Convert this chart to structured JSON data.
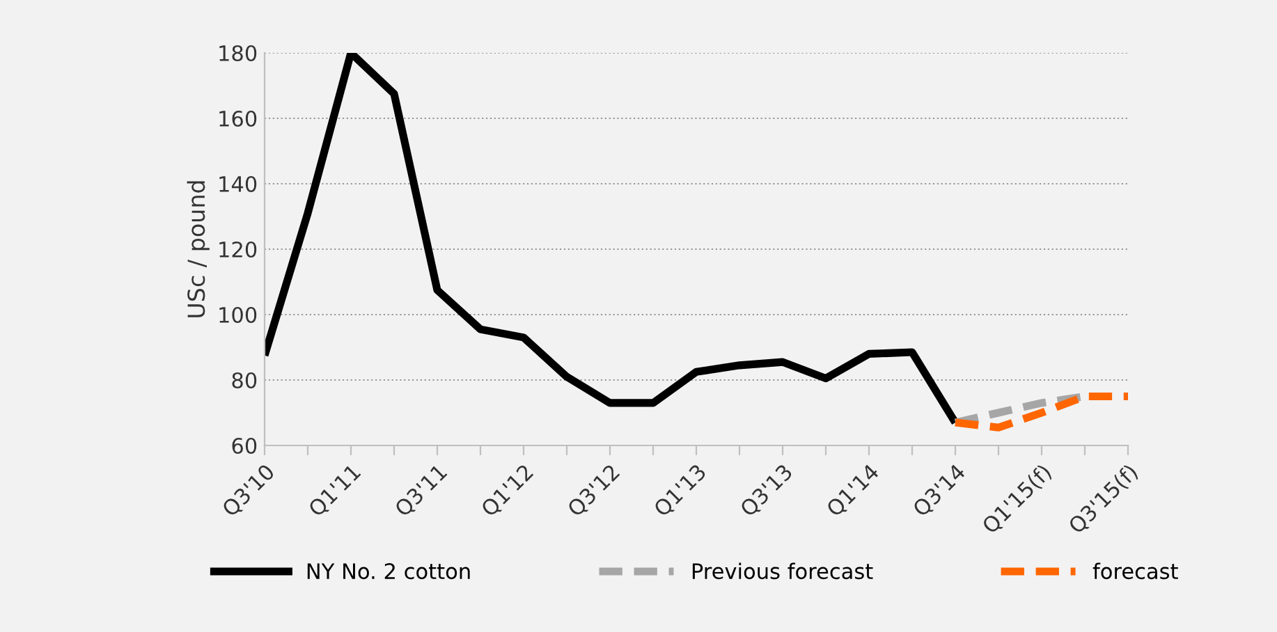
{
  "chart_data": {
    "type": "line",
    "ylabel": "USc / pound",
    "categories": [
      "Q3'10",
      null,
      "Q1'11",
      null,
      "Q3'11",
      null,
      "Q1'12",
      null,
      "Q3'12",
      null,
      "Q1'13",
      null,
      "Q3'13",
      null,
      "Q1'14",
      null,
      "Q3'14",
      null,
      "Q1'15(f)",
      null,
      "Q3'15(f)"
    ],
    "series": [
      {
        "name": "NY No. 2 cotton",
        "color": "#000000",
        "line_style": "solid",
        "values": [
          87.5,
          131,
          180,
          167.5,
          107.5,
          95.5,
          93,
          81,
          73,
          73,
          82.5,
          84.5,
          85.5,
          80.5,
          88,
          88.5,
          67,
          null,
          null,
          null,
          null
        ]
      },
      {
        "name": "Previous forecast",
        "color": "#a6a6a6",
        "line_style": "dashed",
        "values": [
          null,
          null,
          null,
          null,
          null,
          null,
          null,
          null,
          null,
          null,
          null,
          null,
          null,
          null,
          null,
          null,
          67,
          70,
          73,
          75,
          null
        ]
      },
      {
        "name": "forecast",
        "color": "#ff6600",
        "line_style": "dashed",
        "values": [
          null,
          null,
          null,
          null,
          null,
          null,
          null,
          null,
          null,
          null,
          null,
          null,
          null,
          null,
          null,
          null,
          67,
          65.5,
          70,
          75,
          75
        ]
      }
    ],
    "ylim": [
      60,
      180
    ],
    "yticks": [
      60,
      80,
      100,
      120,
      140,
      160,
      180
    ],
    "grid": "y",
    "legend": "bottom",
    "marker": "none"
  }
}
